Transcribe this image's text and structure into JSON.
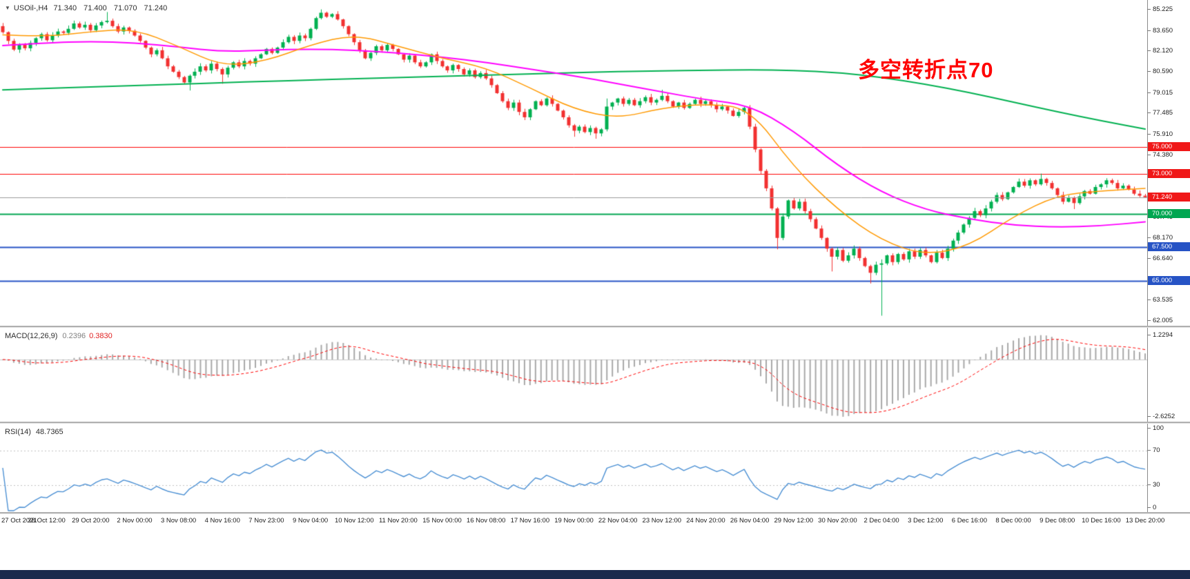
{
  "chart_data": {
    "type": "candlestick",
    "symbol": "USOil-,H4",
    "ohlc_text": "71.340 71.400 71.070 71.240",
    "timeframe": "H4",
    "annotation": {
      "text": "多空转折点70",
      "color": "#ff0000"
    },
    "price_axis": {
      "range": [
        61.65,
        85.95
      ],
      "ticks": [
        85.225,
        83.65,
        82.12,
        80.59,
        79.015,
        77.485,
        75.91,
        74.38,
        69.745,
        68.17,
        66.64,
        63.535,
        62.005
      ]
    },
    "x_labels": [
      "27 Oct 2021",
      "28 Oct 12:00",
      "29 Oct 20:00",
      "2 Nov 00:00",
      "3 Nov 08:00",
      "4 Nov 16:00",
      "7 Nov 23:00",
      "9 Nov 04:00",
      "10 Nov 12:00",
      "11 Nov 20:00",
      "15 Nov 00:00",
      "16 Nov 08:00",
      "17 Nov 16:00",
      "19 Nov 00:00",
      "22 Nov 04:00",
      "23 Nov 12:00",
      "24 Nov 20:00",
      "26 Nov 04:00",
      "29 Nov 12:00",
      "30 Nov 20:00",
      "2 Dec 04:00",
      "3 Dec 12:00",
      "6 Dec 16:00",
      "8 Dec 00:00",
      "9 Dec 08:00",
      "10 Dec 16:00",
      "13 Dec 20:00"
    ],
    "bars_per_label": 8,
    "candles": {
      "open_first": 84.0,
      "up_color": "#00b050",
      "down_color": "#f23030",
      "closes": [
        83.55,
        82.9,
        82.25,
        82.6,
        82.35,
        82.75,
        83.1,
        83.4,
        82.95,
        83.3,
        83.6,
        83.5,
        83.8,
        84.2,
        83.9,
        84.1,
        83.7,
        84.05,
        84.3,
        84.4,
        84.0,
        83.6,
        83.9,
        83.65,
        83.3,
        82.9,
        82.4,
        81.9,
        82.2,
        81.6,
        81.0,
        80.6,
        80.2,
        79.8,
        80.3,
        80.6,
        81.0,
        80.7,
        81.2,
        80.8,
        80.4,
        80.9,
        81.3,
        81.0,
        81.4,
        81.2,
        81.6,
        81.9,
        82.3,
        82.0,
        82.4,
        82.8,
        83.2,
        82.9,
        83.3,
        83.1,
        83.8,
        84.6,
        85.0,
        84.7,
        84.9,
        84.5,
        84.0,
        83.4,
        82.8,
        82.2,
        81.6,
        82.0,
        82.5,
        82.2,
        82.6,
        82.3,
        81.9,
        81.5,
        81.8,
        81.3,
        81.0,
        81.3,
        81.9,
        81.4,
        81.0,
        80.7,
        81.1,
        80.8,
        80.4,
        80.7,
        80.2,
        80.5,
        80.1,
        79.6,
        79.0,
        78.4,
        77.9,
        78.3,
        77.6,
        77.2,
        77.8,
        78.4,
        78.1,
        78.6,
        78.2,
        77.7,
        77.2,
        76.6,
        76.2,
        76.5,
        76.1,
        76.4,
        76.0,
        76.3,
        78.0,
        78.3,
        78.6,
        78.2,
        78.5,
        78.1,
        78.4,
        78.7,
        78.3,
        78.5,
        78.8,
        78.4,
        78.0,
        78.3,
        77.9,
        78.2,
        78.5,
        78.2,
        78.4,
        78.1,
        77.8,
        78.0,
        77.7,
        77.3,
        77.6,
        77.9,
        76.5,
        74.8,
        73.2,
        71.9,
        70.4,
        68.2,
        69.8,
        71.0,
        70.4,
        70.9,
        70.2,
        69.6,
        68.9,
        68.2,
        67.4,
        66.8,
        67.3,
        66.5,
        66.9,
        67.4,
        66.7,
        66.1,
        65.6,
        66.2,
        66.3,
        66.9,
        66.4,
        67.0,
        66.6,
        67.2,
        66.8,
        67.3,
        66.9,
        66.4,
        67.1,
        66.7,
        67.4,
        68.0,
        68.6,
        69.2,
        69.7,
        70.2,
        69.9,
        70.4,
        70.9,
        71.4,
        71.1,
        71.6,
        72.0,
        72.4,
        72.1,
        72.5,
        72.2,
        72.6,
        72.3,
        71.9,
        71.4,
        70.9,
        71.2,
        70.8,
        71.3,
        71.7,
        71.5,
        72.0,
        72.2,
        72.5,
        72.3,
        71.9,
        72.1,
        71.8,
        71.5,
        71.35,
        71.24
      ],
      "wick_overrides": {
        "19": [
          0.65,
          0.1
        ],
        "34": [
          0.1,
          0.6
        ],
        "40": [
          0.12,
          0.7
        ],
        "58": [
          0.25,
          0.1
        ],
        "104": [
          0.1,
          0.45
        ],
        "108": [
          0.1,
          0.4
        ],
        "110": [
          0.6,
          0.15
        ],
        "120": [
          0.45,
          0.1
        ],
        "141": [
          0.1,
          0.85
        ],
        "151": [
          0.1,
          1.1
        ],
        "158": [
          0.1,
          0.8
        ],
        "160": [
          0.3,
          3.8
        ],
        "189": [
          0.4,
          0.1
        ],
        "195": [
          0.1,
          0.45
        ]
      }
    },
    "ma_lines": [
      {
        "name": "ma-slow-green",
        "color": "#00b050",
        "width": 2,
        "sample_step": 8,
        "values": [
          79.25,
          79.36,
          79.46,
          79.57,
          79.67,
          79.78,
          79.88,
          79.98,
          80.08,
          80.17,
          80.26,
          80.35,
          80.44,
          80.53,
          80.62,
          80.66,
          80.7,
          80.75,
          80.7,
          80.54,
          80.18,
          79.67,
          79.05,
          78.33,
          77.61,
          76.94,
          76.32
        ]
      },
      {
        "name": "ma-mid-magenta",
        "color": "#ff00ff",
        "width": 2,
        "sample_step": 8,
        "values": [
          82.55,
          82.75,
          82.86,
          82.75,
          82.45,
          82.1,
          82.2,
          82.3,
          82.2,
          82.0,
          81.7,
          81.3,
          80.8,
          80.3,
          79.7,
          79.1,
          78.5,
          78.1,
          76.2,
          73.6,
          71.6,
          70.3,
          69.6,
          69.15,
          69.0,
          69.1,
          69.4
        ]
      },
      {
        "name": "ma-fast-orange",
        "color": "#ff9900",
        "width": 1.5,
        "sample_step": 8,
        "values": [
          83.35,
          83.2,
          83.6,
          83.8,
          82.5,
          81.0,
          81.4,
          82.6,
          83.4,
          82.5,
          81.6,
          80.9,
          79.4,
          77.8,
          77.1,
          77.9,
          78.2,
          77.9,
          73.5,
          70.3,
          68.0,
          66.9,
          67.6,
          69.8,
          71.4,
          71.7,
          71.9
        ]
      }
    ],
    "h_lines": [
      {
        "value": 75.0,
        "color": "#ff0000",
        "width": 1,
        "label": "75.000",
        "badge": "#f01818"
      },
      {
        "value": 73.0,
        "color": "#ff0000",
        "width": 1,
        "label": "73.000",
        "badge": "#f01818"
      },
      {
        "value": 70.0,
        "color": "#00a651",
        "width": 2,
        "label": "70.000",
        "badge": "#00a651"
      },
      {
        "value": 67.5,
        "color": "#2653c5",
        "width": 2,
        "label": "67.500",
        "badge": "#2653c5"
      },
      {
        "value": 65.0,
        "color": "#2653c5",
        "width": 2,
        "label": "65.000",
        "badge": "#2653c5"
      }
    ],
    "current_price": {
      "value": 71.24,
      "label": "71.240",
      "line_color": "#9a9a9a",
      "badge_color": "#f01818"
    },
    "macd": {
      "label": "MACD(12,26,9)",
      "macd_value": "0.2396",
      "signal_value": "0.3830",
      "fast": 12,
      "slow": 26,
      "signal": 9,
      "axis_ticks": [
        "1.2294",
        "-2.6252"
      ],
      "hist_color": "#a8a8a8",
      "signal_color": "#ff0000",
      "zero_color": "#c9c9c9",
      "macd_value_color": "#808080",
      "signal_value_color": "#e02020"
    },
    "rsi": {
      "label": "RSI(14)",
      "value": "48.7365",
      "period": 14,
      "color": "#4a8fd3",
      "axis_ticks": [
        100,
        70,
        30,
        0
      ],
      "levels": [
        70,
        30
      ],
      "level_color": "#c0c0c0"
    }
  },
  "taskbar": {
    "color": "#1b2a4d"
  }
}
